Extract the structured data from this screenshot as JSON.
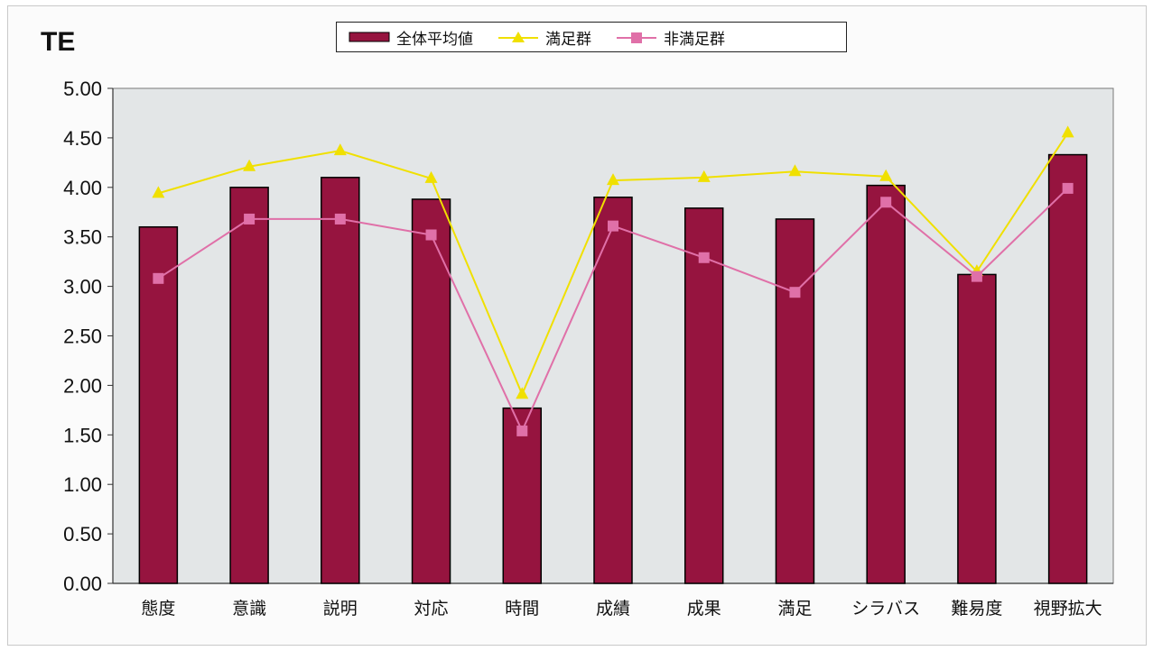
{
  "chart_data": {
    "type": "bar",
    "title": "TE",
    "categories": [
      "態度",
      "意識",
      "説明",
      "対応",
      "時間",
      "成績",
      "成果",
      "満足",
      "シラバス",
      "難易度",
      "視野拡大"
    ],
    "ylim": [
      0,
      5
    ],
    "yticks": [
      "0.00",
      "0.50",
      "1.00",
      "1.50",
      "2.00",
      "2.50",
      "3.00",
      "3.50",
      "4.00",
      "4.50",
      "5.00"
    ],
    "grid": false,
    "legend_position": "top",
    "series": [
      {
        "name": "全体平均値",
        "kind": "bar",
        "color": "#96143f",
        "values": [
          3.6,
          4.0,
          4.1,
          3.88,
          1.77,
          3.9,
          3.79,
          3.68,
          4.02,
          3.12,
          4.33
        ]
      },
      {
        "name": "満足群",
        "kind": "line",
        "marker": "triangle",
        "color": "#f0e000",
        "values": [
          3.94,
          4.21,
          4.37,
          4.09,
          1.91,
          4.07,
          4.1,
          4.16,
          4.11,
          3.15,
          4.55
        ]
      },
      {
        "name": "非満足群",
        "kind": "line",
        "marker": "square",
        "color": "#e070a8",
        "values": [
          3.08,
          3.68,
          3.68,
          3.52,
          1.54,
          3.61,
          3.29,
          2.94,
          3.85,
          3.1,
          3.99
        ]
      }
    ]
  }
}
